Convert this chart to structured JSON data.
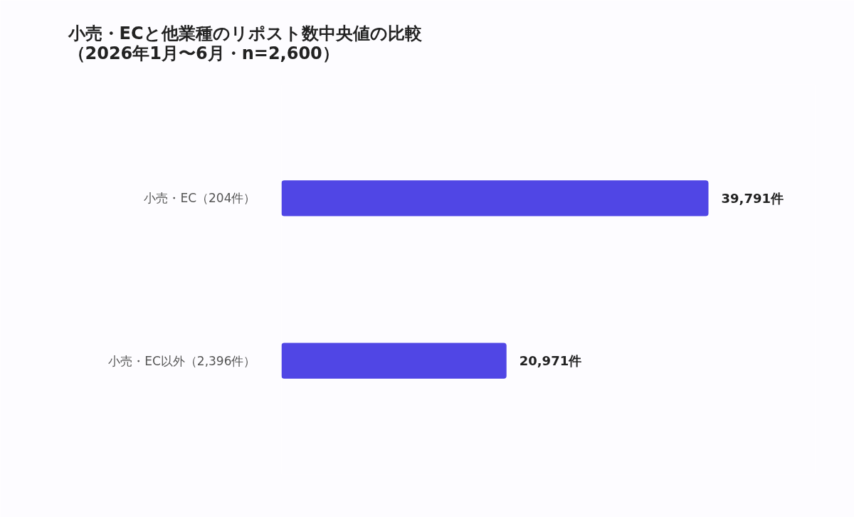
{
  "chart_data": {
    "type": "bar",
    "orientation": "horizontal",
    "title": "小売・ECと他業種のリポスト数中央値の比較（2026年1月〜6月・n=2,600）",
    "categories": [
      "小売・EC（204件）",
      "小売・EC以外（2,396件）"
    ],
    "values": [
      39791,
      20971
    ],
    "value_labels": [
      "39,791件",
      "20,971件"
    ],
    "color": "#5046e5",
    "grid": false
  }
}
